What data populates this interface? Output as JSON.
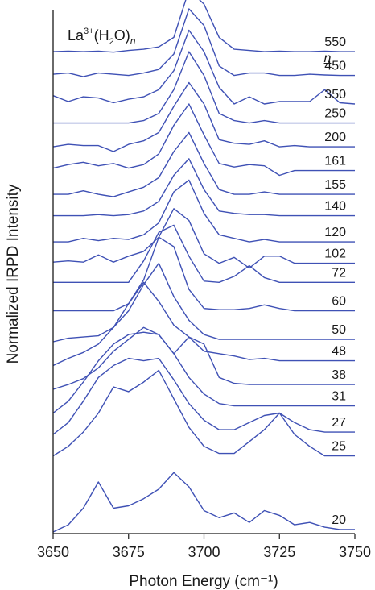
{
  "chart_data": {
    "type": "line",
    "title_parts": {
      "base": "La",
      "sup": "3+",
      "mid1": "(H",
      "sub1": "2",
      "mid2": "O)",
      "sub2": "n"
    },
    "legend_header": "n",
    "xlabel": "Photon Energy (cm⁻¹)",
    "ylabel": "Normalized IRPD Intensity",
    "xlim": [
      3650,
      3750
    ],
    "x_ticks": [
      "3650",
      "3675",
      "3700",
      "3725",
      "3750"
    ],
    "ylim": [
      0,
      21
    ],
    "y_ticks": false,
    "grid": false,
    "x": [
      3650,
      3655,
      3660,
      3665,
      3670,
      3675,
      3680,
      3685,
      3690,
      3695,
      3700,
      3705,
      3710,
      3715,
      3720,
      3725,
      3730,
      3735,
      3740,
      3745,
      3750
    ],
    "series": [
      {
        "name": "550",
        "offset": 20,
        "values": [
          0.2,
          0.22,
          0.2,
          0.22,
          0.18,
          0.25,
          0.3,
          0.4,
          0.8,
          2.8,
          2.2,
          0.8,
          0.3,
          0.25,
          0.2,
          0.22,
          0.2,
          0.2,
          0.22,
          0.2,
          0.2
        ]
      },
      {
        "name": "450",
        "offset": 19,
        "values": [
          0.25,
          0.3,
          0.15,
          0.3,
          0.25,
          0.2,
          0.3,
          0.45,
          1.1,
          3.0,
          2.3,
          0.6,
          0.2,
          0.3,
          0.3,
          0.2,
          0.2,
          0.25,
          0.22,
          0.2,
          0.2
        ]
      },
      {
        "name": "350",
        "offset": 18,
        "values": [
          0.35,
          0.1,
          0.3,
          0.25,
          0.05,
          0.2,
          0.3,
          0.6,
          1.4,
          3.1,
          2.2,
          0.7,
          0.0,
          0.3,
          0.0,
          0.1,
          0.1,
          0.1,
          0.6,
          0.05,
          0.0
        ]
      },
      {
        "name": "250",
        "offset": 17,
        "values": [
          0.2,
          0.2,
          0.2,
          0.2,
          0.2,
          0.2,
          0.3,
          0.6,
          1.6,
          3.2,
          2.2,
          0.6,
          0.3,
          0.2,
          0.3,
          0.2,
          0.2,
          0.2,
          0.2,
          0.2,
          0.2
        ]
      },
      {
        "name": "200",
        "offset": 16,
        "values": [
          0.2,
          0.3,
          0.25,
          0.25,
          0.0,
          0.3,
          0.45,
          0.8,
          1.9,
          2.9,
          2.0,
          0.5,
          0.35,
          0.3,
          0.45,
          0.2,
          0.25,
          0.2,
          0.2,
          0.2,
          0.2
        ]
      },
      {
        "name": "161",
        "offset": 15,
        "values": [
          0.3,
          0.45,
          0.55,
          0.4,
          0.5,
          0.3,
          0.45,
          0.9,
          2.1,
          3.0,
          1.7,
          0.5,
          0.35,
          0.45,
          0.4,
          0.0,
          0.2,
          0.2,
          0.2,
          0.2,
          0.2
        ]
      },
      {
        "name": "155",
        "offset": 14,
        "values": [
          0.2,
          0.2,
          0.35,
          0.2,
          0.1,
          0.3,
          0.5,
          0.9,
          2.0,
          2.8,
          1.5,
          0.4,
          0.2,
          0.2,
          0.3,
          0.2,
          0.2,
          0.2,
          0.2,
          0.2,
          0.2
        ]
      },
      {
        "name": "140",
        "offset": 13,
        "values": [
          0.3,
          0.3,
          0.3,
          0.35,
          0.3,
          0.35,
          0.5,
          0.9,
          2.0,
          2.7,
          1.4,
          0.5,
          0.4,
          0.35,
          0.35,
          0.3,
          0.3,
          0.3,
          0.3,
          0.3,
          0.3
        ]
      },
      {
        "name": "120",
        "offset": 12,
        "values": [
          0.2,
          0.2,
          0.35,
          0.25,
          0.35,
          0.3,
          0.5,
          1.0,
          2.3,
          2.8,
          1.4,
          0.5,
          0.35,
          0.2,
          0.3,
          0.2,
          0.2,
          0.2,
          0.2,
          0.2,
          0.2
        ]
      },
      {
        "name": "102",
        "offset": 11,
        "values": [
          0.35,
          0.4,
          0.35,
          0.65,
          0.35,
          0.6,
          0.8,
          1.4,
          2.6,
          2.1,
          0.7,
          0.3,
          0.55,
          0.1,
          0.6,
          0.6,
          0.3,
          0.3,
          0.3,
          0.3,
          0.3
        ]
      },
      {
        "name": "72",
        "offset": 10,
        "values": [
          0.5,
          0.5,
          0.5,
          0.5,
          0.5,
          0.5,
          1.4,
          2.6,
          2.9,
          1.6,
          0.55,
          0.5,
          0.75,
          1.2,
          0.7,
          0.5,
          0.5,
          0.5,
          0.5,
          0.5,
          0.5
        ]
      },
      {
        "name": "60",
        "offset": 9,
        "values": [
          0.3,
          0.3,
          0.3,
          0.3,
          0.3,
          0.6,
          1.6,
          3.4,
          3.0,
          1.2,
          0.4,
          0.35,
          0.35,
          0.4,
          0.55,
          0.4,
          0.3,
          0.3,
          0.3,
          0.3,
          0.3
        ]
      },
      {
        "name": "50",
        "offset": 8,
        "values": [
          0.0,
          0.15,
          0.2,
          0.25,
          0.6,
          1.3,
          2.4,
          3.3,
          1.9,
          0.9,
          0.3,
          0.1,
          0.1,
          0.1,
          0.1,
          0.1,
          0.1,
          0.1,
          0.1,
          0.1,
          0.1
        ]
      },
      {
        "name": "48",
        "offset": 7,
        "values": [
          0.0,
          0.3,
          0.55,
          0.9,
          1.6,
          2.6,
          3.5,
          2.7,
          1.7,
          1.2,
          0.6,
          0.5,
          0.4,
          0.25,
          0.3,
          0.2,
          0.2,
          0.2,
          0.2,
          0.2,
          0.2
        ]
      },
      {
        "name": "38",
        "offset": 6,
        "values": [
          0.0,
          0.2,
          0.45,
          0.9,
          1.6,
          2.1,
          2.6,
          2.3,
          1.5,
          2.2,
          1.9,
          0.5,
          0.25,
          0.2,
          0.2,
          0.2,
          0.2,
          0.2,
          0.2,
          0.2,
          0.2
        ]
      },
      {
        "name": "31",
        "offset": 5,
        "values": [
          0.0,
          0.5,
          1.3,
          2.2,
          2.9,
          3.3,
          3.4,
          3.3,
          2.5,
          1.5,
          0.8,
          0.4,
          0.3,
          0.3,
          0.3,
          0.3,
          0.3,
          0.3,
          0.3,
          0.3,
          0.3
        ]
      },
      {
        "name": "27",
        "offset": 4,
        "values": [
          0.1,
          0.6,
          1.5,
          2.5,
          3.0,
          3.3,
          3.2,
          3.3,
          2.4,
          1.4,
          0.7,
          0.3,
          0.3,
          0.6,
          0.9,
          1.0,
          0.6,
          0.3,
          0.2,
          0.2,
          0.2
        ]
      },
      {
        "name": "25",
        "offset": 3,
        "values": [
          0.2,
          0.6,
          1.2,
          2.0,
          3.1,
          2.9,
          3.3,
          3.8,
          2.6,
          1.4,
          0.6,
          0.3,
          0.3,
          0.8,
          1.3,
          2.0,
          1.1,
          0.6,
          0.2,
          0.2,
          0.2
        ]
      },
      {
        "name": "20",
        "offset": 0,
        "values": [
          0.0,
          0.3,
          1.0,
          2.1,
          1.0,
          1.1,
          1.4,
          1.8,
          2.5,
          1.9,
          0.9,
          0.6,
          0.8,
          0.4,
          0.9,
          0.7,
          0.3,
          0.4,
          0.2,
          0.1,
          0.1
        ]
      }
    ]
  }
}
